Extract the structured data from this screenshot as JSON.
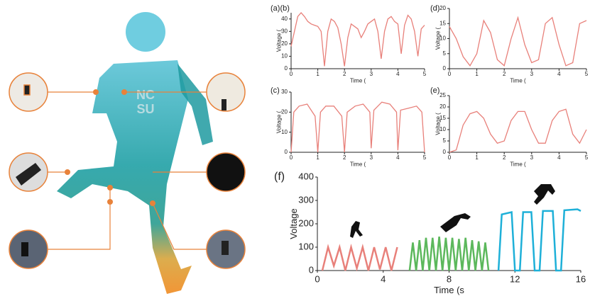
{
  "illustration": {
    "shirt_text": [
      "NC",
      "SU"
    ]
  },
  "chart_data": [
    {
      "type": "line",
      "label": "(a)(b)",
      "xlabel": "Time (",
      "ylabel": "Voltage (",
      "color": "#e8807a",
      "x": [
        0,
        0.125,
        0.25,
        0.375,
        0.5,
        0.625,
        0.75,
        0.875,
        1,
        1.125,
        1.25,
        1.375,
        1.5,
        1.625,
        1.75,
        1.875,
        2,
        2.125,
        2.25,
        2.375,
        2.5,
        2.625,
        2.75,
        2.875,
        3,
        3.125,
        3.25,
        3.375,
        3.5,
        3.625,
        3.75,
        3.875,
        4,
        4.125,
        4.25,
        4.375,
        4.5,
        4.625,
        4.75,
        4.875,
        5
      ],
      "values": [
        18,
        30,
        42,
        45,
        42,
        38,
        36,
        35,
        34,
        30,
        2,
        30,
        40,
        38,
        33,
        20,
        2,
        25,
        36,
        34,
        32,
        25,
        30,
        36,
        38,
        40,
        30,
        8,
        30,
        40,
        42,
        38,
        36,
        12,
        35,
        43,
        40,
        30,
        10,
        32,
        35
      ],
      "xlim": [
        0,
        5
      ],
      "ylim": [
        0,
        45
      ],
      "xticks": [
        0,
        1,
        2,
        3,
        4,
        5
      ],
      "yticks": [
        0,
        10,
        20,
        30,
        40
      ]
    },
    {
      "type": "line",
      "label": "(d)",
      "xlabel": "Time (",
      "ylabel": "Voltage (",
      "color": "#e8807a",
      "x": [
        0,
        0.25,
        0.5,
        0.75,
        1,
        1.25,
        1.5,
        1.75,
        2,
        2.25,
        2.5,
        2.75,
        3,
        3.25,
        3.5,
        3.75,
        4,
        4.25,
        4.5,
        4.75,
        5
      ],
      "values": [
        14,
        10,
        4,
        1,
        5,
        16,
        12,
        3,
        1,
        10,
        17,
        8,
        2,
        3,
        15,
        17,
        8,
        1,
        2,
        15,
        16
      ],
      "xlim": [
        0,
        5
      ],
      "ylim": [
        0,
        20
      ],
      "xticks": [
        0,
        1,
        2,
        3,
        4,
        5
      ],
      "yticks": [
        0,
        5,
        10,
        15,
        20
      ]
    },
    {
      "type": "line",
      "label": "(c)",
      "xlabel": "Time (",
      "ylabel": "Voltage (",
      "color": "#e8807a",
      "x": [
        0,
        0.1,
        0.3,
        0.6,
        0.9,
        1,
        1.1,
        1.3,
        1.6,
        1.9,
        2,
        2.1,
        2.4,
        2.7,
        2.95,
        3,
        3.1,
        3.4,
        3.7,
        3.95,
        4,
        4.1,
        4.4,
        4.7,
        4.9,
        5
      ],
      "values": [
        0,
        20,
        23,
        24,
        18,
        0,
        20,
        23,
        23,
        18,
        0,
        20,
        23,
        24,
        20,
        2,
        21,
        25,
        24,
        20,
        1,
        21,
        22,
        23,
        20,
        0
      ],
      "xlim": [
        0,
        5
      ],
      "ylim": [
        0,
        30
      ],
      "xticks": [
        0,
        1,
        2,
        3,
        4,
        5
      ],
      "yticks": [
        0,
        10,
        20,
        30
      ]
    },
    {
      "type": "line",
      "label": "(e)",
      "xlabel": "Time (",
      "ylabel": "Voltage (",
      "color": "#e8807a",
      "x": [
        0,
        0.25,
        0.5,
        0.75,
        1,
        1.25,
        1.5,
        1.75,
        2,
        2.25,
        2.5,
        2.75,
        3,
        3.25,
        3.5,
        3.75,
        4,
        4.25,
        4.5,
        4.75,
        5
      ],
      "values": [
        0,
        1,
        12,
        17,
        18,
        15,
        8,
        4,
        5,
        14,
        18,
        18,
        10,
        4,
        4,
        14,
        18,
        19,
        8,
        4,
        10
      ],
      "xlim": [
        0,
        5
      ],
      "ylim": [
        0,
        25
      ],
      "xticks": [
        0,
        1,
        2,
        3,
        4,
        5
      ],
      "yticks": [
        0,
        5,
        10,
        15,
        20,
        25
      ]
    },
    {
      "type": "line",
      "label": "(f)",
      "xlabel": "Time (s",
      "ylabel": "Voltage",
      "series": [
        {
          "color": "#e8807a",
          "x": [
            0.3,
            0.65,
            1.0,
            1.35,
            1.7,
            2.05,
            2.4,
            2.75,
            3.1,
            3.45,
            3.8,
            4.15,
            4.5,
            4.85
          ],
          "values": [
            0,
            100,
            20,
            100,
            0,
            100,
            10,
            100,
            0,
            100,
            5,
            100,
            0,
            100
          ]
        },
        {
          "color": "#5cb85c",
          "x": [
            5.6,
            5.8,
            6.0,
            6.2,
            6.4,
            6.6,
            6.8,
            7.0,
            7.2,
            7.4,
            7.6,
            7.8,
            8.0,
            8.2,
            8.4,
            8.6,
            8.8,
            9.0,
            9.2,
            9.4,
            9.6,
            9.8,
            10.0,
            10.2,
            10.4
          ],
          "values": [
            0,
            120,
            0,
            130,
            0,
            140,
            0,
            140,
            0,
            145,
            0,
            140,
            0,
            140,
            0,
            135,
            0,
            140,
            0,
            130,
            0,
            125,
            0,
            120,
            0
          ]
        },
        {
          "color": "#1eb0d8",
          "x": [
            11.0,
            11.2,
            11.8,
            12.0,
            12.3,
            12.5,
            13.0,
            13.2,
            13.5,
            13.7,
            14.3,
            14.5,
            14.8,
            15.0,
            15.8,
            16.0
          ],
          "values": [
            0,
            240,
            250,
            0,
            0,
            250,
            250,
            0,
            0,
            255,
            255,
            0,
            0,
            258,
            262,
            255
          ]
        }
      ],
      "xlim": [
        0,
        16
      ],
      "ylim": [
        0,
        400
      ],
      "xticks": [
        0,
        4,
        8,
        12,
        16
      ],
      "yticks": [
        0,
        100,
        200,
        300,
        400
      ]
    }
  ]
}
